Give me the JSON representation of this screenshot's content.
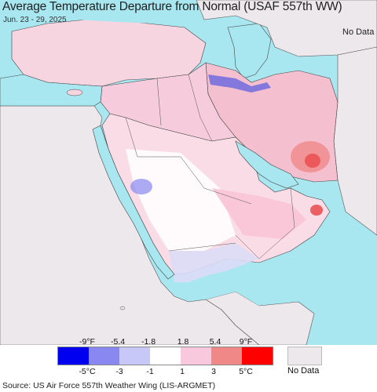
{
  "title": "Average Temperature Departure from Normal (USAF 557th WW)",
  "date_range": "Jun. 23 - 29, 2025",
  "map": {
    "labels": [
      {
        "text": "No Data"
      }
    ]
  },
  "legend": {
    "fahrenheit_ticks": [
      "-9°F",
      "-5.4",
      "-1.8",
      "1.8",
      "5.4",
      "9°F"
    ],
    "celsius_ticks": [
      "-5°C",
      "-3",
      "-1",
      "1",
      "3",
      "5°C"
    ],
    "colors": [
      "#0000f0",
      "#8888f0",
      "#c8c8f8",
      "#ffffff",
      "#f8c8dc",
      "#f08888",
      "#ff0000"
    ],
    "no_data_label": "No Data",
    "no_data_color": "#ece8ec"
  },
  "colors": {
    "sea": "#a8e6f0",
    "land_nodata": "#ece8ec",
    "border": "#333333"
  },
  "source": "Source: US Air Force 557th Weather Wing (LIS-ARGMET)"
}
